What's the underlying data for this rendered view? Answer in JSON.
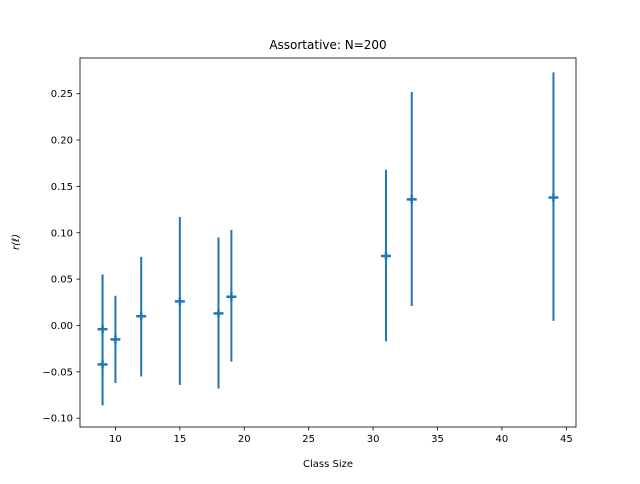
{
  "chart_data": {
    "type": "scatter",
    "title": "Assortative: N=200",
    "xlabel": "Class Size",
    "ylabel": "r(ℓ)",
    "xlim": [
      7.25,
      45.75
    ],
    "ylim": [
      -0.1095,
      0.2885
    ],
    "xticks": [
      10,
      15,
      20,
      25,
      30,
      35,
      40,
      45
    ],
    "yticks": [
      -0.1,
      -0.05,
      0.0,
      0.05,
      0.1,
      0.15,
      0.2,
      0.25
    ],
    "xtick_labels": [
      "10",
      "15",
      "20",
      "25",
      "30",
      "35",
      "40",
      "45"
    ],
    "ytick_labels": [
      "−0.10",
      "−0.05",
      "0.00",
      "0.05",
      "0.10",
      "0.15",
      "0.20",
      "0.25"
    ],
    "grid": false,
    "color": "#1f77b4",
    "series": [
      {
        "marker": "plus",
        "points": [
          {
            "x": 9,
            "y": -0.042,
            "ymin": -0.086,
            "ymax": 0.055
          },
          {
            "x": 9,
            "y": -0.004,
            "ymin": -0.086,
            "ymax": 0.055
          },
          {
            "x": 10,
            "y": -0.015,
            "ymin": -0.062,
            "ymax": 0.032
          },
          {
            "x": 12,
            "y": 0.01,
            "ymin": -0.055,
            "ymax": 0.074
          },
          {
            "x": 15,
            "y": 0.026,
            "ymin": -0.064,
            "ymax": 0.117
          },
          {
            "x": 18,
            "y": 0.013,
            "ymin": -0.068,
            "ymax": 0.095
          },
          {
            "x": 19,
            "y": 0.031,
            "ymin": -0.039,
            "ymax": 0.103
          },
          {
            "x": 31,
            "y": 0.075,
            "ymin": -0.017,
            "ymax": 0.168
          },
          {
            "x": 33,
            "y": 0.136,
            "ymin": 0.021,
            "ymax": 0.252
          },
          {
            "x": 44,
            "y": 0.138,
            "ymin": 0.005,
            "ymax": 0.273
          }
        ]
      }
    ]
  }
}
